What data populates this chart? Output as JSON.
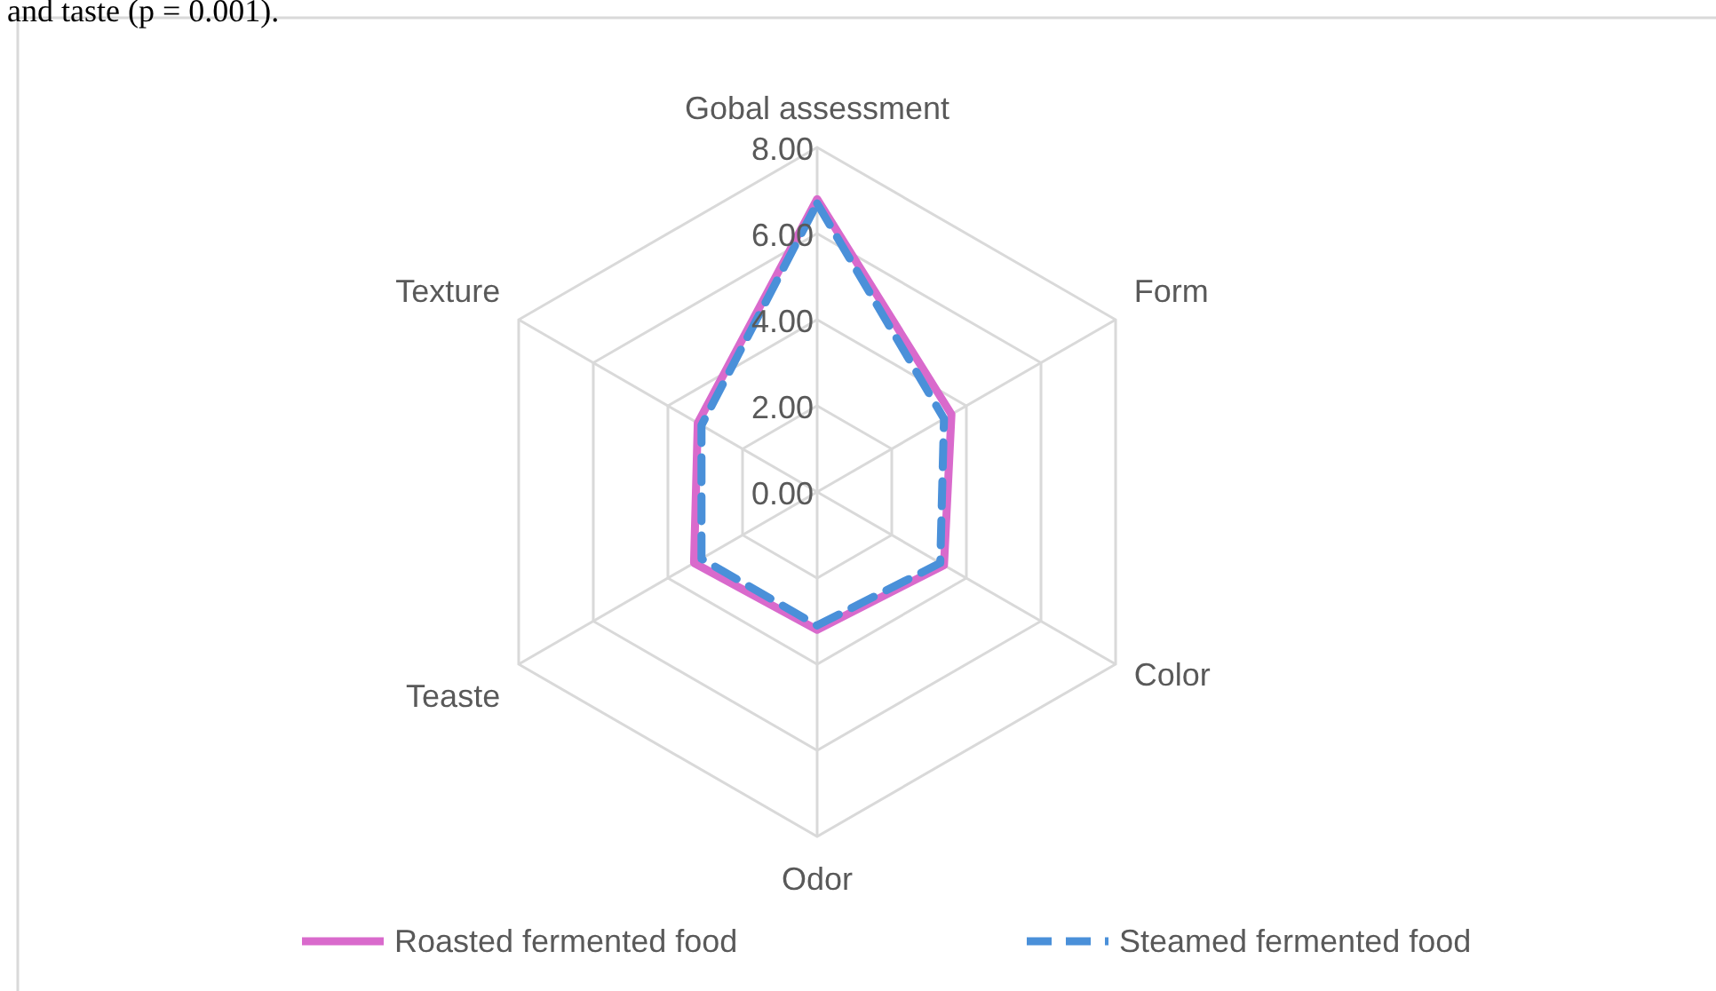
{
  "chart_data": {
    "type": "radar",
    "categories": [
      "Gobal assessment",
      "Form",
      "Color",
      "Odor",
      "Teaste",
      "Texture"
    ],
    "series": [
      {
        "name": "Roasted fermented food",
        "color": "#d96acc",
        "line_style": "solid",
        "values": [
          6.8,
          3.6,
          3.4,
          3.2,
          3.3,
          3.2
        ]
      },
      {
        "name": "Steamed fermented food",
        "color": "#4a90d9",
        "line_style": "dashed",
        "values": [
          6.7,
          3.4,
          3.3,
          3.1,
          3.1,
          3.1
        ]
      }
    ],
    "ylim": [
      0,
      8
    ],
    "yticks": [
      {
        "value": 0,
        "label": "0.00"
      },
      {
        "value": 2,
        "label": "2.00"
      },
      {
        "value": 4,
        "label": "4.00"
      },
      {
        "value": 6,
        "label": "6.00"
      },
      {
        "value": 8,
        "label": "8.00"
      }
    ],
    "grid": true,
    "legend": "bottom",
    "marker": "none",
    "annotations": [
      "and taste (p = 0.001)."
    ]
  }
}
